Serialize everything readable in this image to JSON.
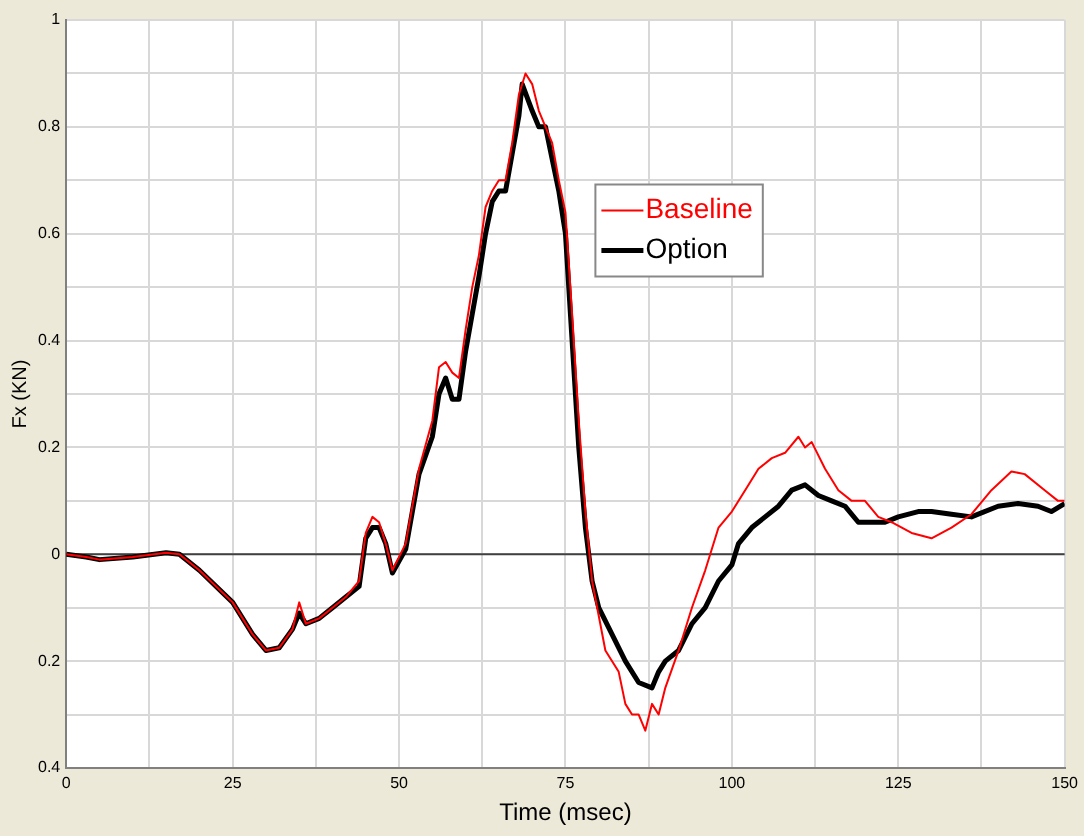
{
  "chart_data": {
    "type": "line",
    "xlabel": "Time (msec)",
    "ylabel": "Fx (KN)",
    "xlim": [
      0,
      150
    ],
    "xticks": [
      0,
      {
        "value": 12.5,
        "label": null
      },
      25,
      {
        "value": 37.5,
        "label": null
      },
      50,
      {
        "value": 62.5,
        "label": null
      },
      75,
      {
        "value": 87.5,
        "label": null
      },
      100,
      {
        "value": 112.5,
        "label": null
      },
      125,
      {
        "value": 137.5,
        "label": null
      },
      150
    ],
    "ylim": [
      -0.4,
      1
    ],
    "yticks": [
      {
        "value": -0.4,
        "label": "0.4"
      },
      {
        "value": -0.3,
        "label": null
      },
      {
        "value": -0.2,
        "label": "0.2"
      },
      {
        "value": -0.1,
        "label": null
      },
      0,
      {
        "value": 0.1,
        "label": null
      },
      0.2,
      {
        "value": 0.3,
        "label": null
      },
      0.4,
      {
        "value": 0.5,
        "label": null
      },
      0.6,
      {
        "value": 0.7,
        "label": null
      },
      0.8,
      {
        "value": 0.9,
        "label": null
      },
      1
    ],
    "grid": true,
    "legend": "top right",
    "marker": "none",
    "line_style": "solid",
    "ref_lines": [
      {
        "axis": "y",
        "value": 0,
        "color": "#404040"
      }
    ],
    "series": [
      {
        "name": "Baseline",
        "color": "#ff0000",
        "x": [
          0,
          3,
          5,
          10,
          15,
          17,
          20,
          25,
          28,
          30,
          32,
          34,
          35,
          36,
          38,
          40,
          42,
          44,
          45,
          46,
          47,
          48,
          49,
          51,
          53,
          55,
          56,
          57,
          58,
          59,
          60,
          61,
          62,
          63,
          64,
          65,
          66,
          67,
          68,
          69,
          70,
          71,
          72,
          73,
          74,
          75,
          76,
          77,
          78,
          79,
          81,
          83,
          84,
          85,
          86,
          87,
          88,
          89,
          90,
          92,
          94,
          96,
          98,
          100,
          102,
          104,
          106,
          108,
          110,
          111,
          112,
          114,
          116,
          118,
          120,
          122,
          124,
          127,
          130,
          133,
          136,
          139,
          142,
          144,
          147,
          149,
          150
        ],
        "values": [
          0,
          -0.005,
          -0.01,
          -0.005,
          0.003,
          0,
          -0.03,
          -0.09,
          -0.15,
          -0.18,
          -0.175,
          -0.14,
          -0.09,
          -0.13,
          -0.12,
          -0.1,
          -0.08,
          -0.05,
          0.04,
          0.07,
          0.06,
          0.02,
          -0.03,
          0.02,
          0.16,
          0.25,
          0.35,
          0.36,
          0.34,
          0.33,
          0.42,
          0.5,
          0.56,
          0.65,
          0.68,
          0.7,
          0.7,
          0.77,
          0.86,
          0.9,
          0.88,
          0.83,
          0.8,
          0.77,
          0.7,
          0.64,
          0.45,
          0.25,
          0.08,
          -0.05,
          -0.18,
          -0.22,
          -0.28,
          -0.3,
          -0.3,
          -0.33,
          -0.28,
          -0.3,
          -0.25,
          -0.18,
          -0.1,
          -0.03,
          0.05,
          0.08,
          0.12,
          0.16,
          0.18,
          0.19,
          0.22,
          0.2,
          0.21,
          0.16,
          0.12,
          0.1,
          0.1,
          0.07,
          0.06,
          0.04,
          0.03,
          0.05,
          0.075,
          0.12,
          0.155,
          0.15,
          0.12,
          0.1,
          0.1
        ]
      },
      {
        "name": "Option",
        "color": "#000000",
        "x": [
          0,
          3,
          5,
          10,
          15,
          17,
          20,
          25,
          28,
          30,
          32,
          34,
          35,
          36,
          38,
          40,
          42,
          44,
          45,
          46,
          47,
          48,
          49,
          51,
          53,
          55,
          56,
          57,
          58,
          59,
          60,
          61,
          62,
          63,
          64,
          65,
          66,
          67,
          68,
          68.5,
          70,
          71,
          72,
          73,
          74,
          75,
          76,
          77,
          78,
          79,
          80,
          82,
          84,
          86,
          88,
          89,
          90,
          92,
          94,
          96,
          98,
          100,
          101,
          103,
          105,
          107,
          109,
          111,
          113,
          115,
          117,
          119,
          121,
          123,
          125,
          128,
          130,
          133,
          136,
          140,
          143,
          146,
          148,
          150
        ],
        "values": [
          0,
          -0.005,
          -0.01,
          -0.005,
          0.003,
          0,
          -0.03,
          -0.09,
          -0.15,
          -0.18,
          -0.175,
          -0.14,
          -0.11,
          -0.13,
          -0.12,
          -0.1,
          -0.08,
          -0.06,
          0.03,
          0.05,
          0.05,
          0.02,
          -0.035,
          0.01,
          0.15,
          0.22,
          0.3,
          0.33,
          0.29,
          0.29,
          0.38,
          0.45,
          0.52,
          0.6,
          0.66,
          0.68,
          0.68,
          0.75,
          0.82,
          0.88,
          0.83,
          0.8,
          0.8,
          0.74,
          0.68,
          0.6,
          0.4,
          0.2,
          0.05,
          -0.05,
          -0.1,
          -0.15,
          -0.2,
          -0.24,
          -0.25,
          -0.22,
          -0.2,
          -0.18,
          -0.13,
          -0.1,
          -0.05,
          -0.02,
          0.02,
          0.05,
          0.07,
          0.09,
          0.12,
          0.13,
          0.11,
          0.1,
          0.09,
          0.06,
          0.06,
          0.06,
          0.07,
          0.08,
          0.08,
          0.075,
          0.07,
          0.09,
          0.095,
          0.09,
          0.08,
          0.095
        ]
      }
    ]
  }
}
